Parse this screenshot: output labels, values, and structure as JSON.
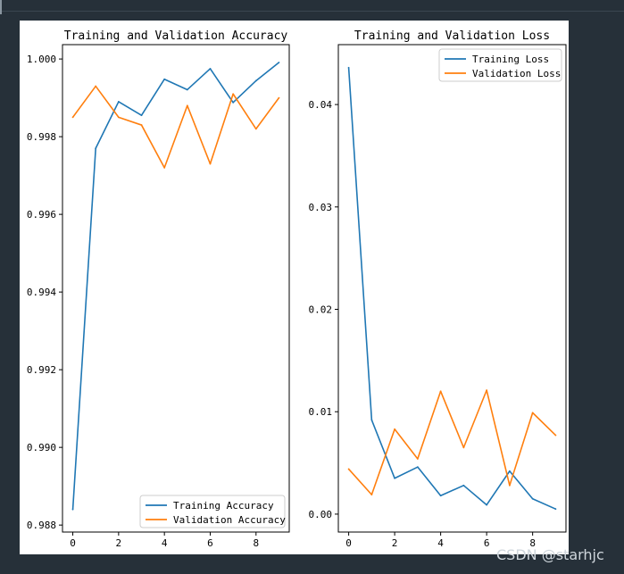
{
  "watermark": "CSDN @starhjc",
  "colors": {
    "page_background": "#263039",
    "training": "#1f77b4",
    "validation": "#ff7f0e"
  },
  "chart_data": [
    {
      "type": "line",
      "title": "Training and Validation Accuracy",
      "xlabel": "",
      "ylabel": "",
      "x": [
        0,
        1,
        2,
        3,
        4,
        5,
        6,
        7,
        8,
        9
      ],
      "xlim": [
        -0.45,
        9.45
      ],
      "ylim": [
        0.98782,
        1.00037
      ],
      "xticks": [
        0,
        2,
        4,
        6,
        8
      ],
      "yticks": [
        0.988,
        0.99,
        0.992,
        0.994,
        0.996,
        0.998,
        1.0
      ],
      "ytick_labels": [
        "0.988",
        "0.990",
        "0.992",
        "0.994",
        "0.996",
        "0.998",
        "1.000"
      ],
      "legend_position": "lower-right",
      "grid": false,
      "series": [
        {
          "name": "Training Accuracy",
          "color": "#1f77b4",
          "values": [
            0.9884,
            0.9977,
            0.9989,
            0.99855,
            0.99948,
            0.99921,
            0.99975,
            0.99888,
            0.99944,
            0.99991
          ]
        },
        {
          "name": "Validation Accuracy",
          "color": "#ff7f0e",
          "values": [
            0.9985,
            0.9993,
            0.9985,
            0.9983,
            0.9972,
            0.9988,
            0.9973,
            0.9991,
            0.9982,
            0.999
          ]
        }
      ]
    },
    {
      "type": "line",
      "title": "Training and Validation Loss",
      "xlabel": "",
      "ylabel": "",
      "x": [
        0,
        1,
        2,
        3,
        4,
        5,
        6,
        7,
        8,
        9
      ],
      "xlim": [
        -0.45,
        9.45
      ],
      "ylim": [
        -0.00175,
        0.04585
      ],
      "xticks": [
        0,
        2,
        4,
        6,
        8
      ],
      "yticks": [
        0.0,
        0.01,
        0.02,
        0.03,
        0.04
      ],
      "ytick_labels": [
        "0.00",
        "0.01",
        "0.02",
        "0.03",
        "0.04"
      ],
      "legend_position": "upper-right",
      "grid": false,
      "series": [
        {
          "name": "Training Loss",
          "color": "#1f77b4",
          "values": [
            0.0436,
            0.0092,
            0.0035,
            0.0046,
            0.0018,
            0.0028,
            0.0009,
            0.0042,
            0.0015,
            0.0005
          ]
        },
        {
          "name": "Validation Loss",
          "color": "#ff7f0e",
          "values": [
            0.0044,
            0.0019,
            0.0083,
            0.0054,
            0.012,
            0.0065,
            0.0121,
            0.0028,
            0.0099,
            0.0077
          ]
        }
      ]
    }
  ]
}
